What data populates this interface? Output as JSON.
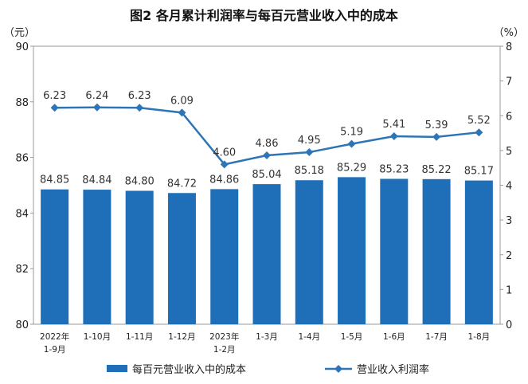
{
  "chart_data": {
    "type": "bar+line",
    "title": "图2  各月累计利润率与每百元营业收入中的成本",
    "y_left_unit": "（元）",
    "y_right_unit": "（%）",
    "y_left_range": [
      80,
      90
    ],
    "y_left_ticks": [
      "80",
      "82",
      "84",
      "86",
      "88",
      "90"
    ],
    "y_right_range": [
      0,
      8
    ],
    "y_right_ticks": [
      "0",
      "1",
      "2",
      "3",
      "4",
      "5",
      "6",
      "7",
      "8"
    ],
    "categories": [
      [
        "2022年",
        "1-9月"
      ],
      [
        "1-10月"
      ],
      [
        "1-11月"
      ],
      [
        "1-12月"
      ],
      [
        "2023年",
        "1-2月"
      ],
      [
        "1-3月"
      ],
      [
        "1-4月"
      ],
      [
        "1-5月"
      ],
      [
        "1-6月"
      ],
      [
        "1-7月"
      ],
      [
        "1-8月"
      ]
    ],
    "series": [
      {
        "name": "每百元营业收入中的成本",
        "type": "bar",
        "axis": "left",
        "color": "#1f6fb8",
        "values": [
          84.85,
          84.84,
          84.8,
          84.72,
          84.86,
          85.04,
          85.18,
          85.29,
          85.23,
          85.22,
          85.17
        ],
        "labels": [
          "84.85",
          "84.84",
          "84.80",
          "84.72",
          "84.86",
          "85.04",
          "85.18",
          "85.29",
          "85.23",
          "85.22",
          "85.17"
        ]
      },
      {
        "name": "营业收入利润率",
        "type": "line",
        "axis": "right",
        "color": "#2e75b6",
        "values": [
          6.23,
          6.24,
          6.23,
          6.09,
          4.6,
          4.86,
          4.95,
          5.19,
          5.41,
          5.39,
          5.52
        ],
        "labels": [
          "6.23",
          "6.24",
          "6.23",
          "6.09",
          "4.60",
          "4.86",
          "4.95",
          "5.19",
          "5.41",
          "5.39",
          "5.52"
        ]
      }
    ],
    "grid": false,
    "legend_position": "bottom"
  }
}
